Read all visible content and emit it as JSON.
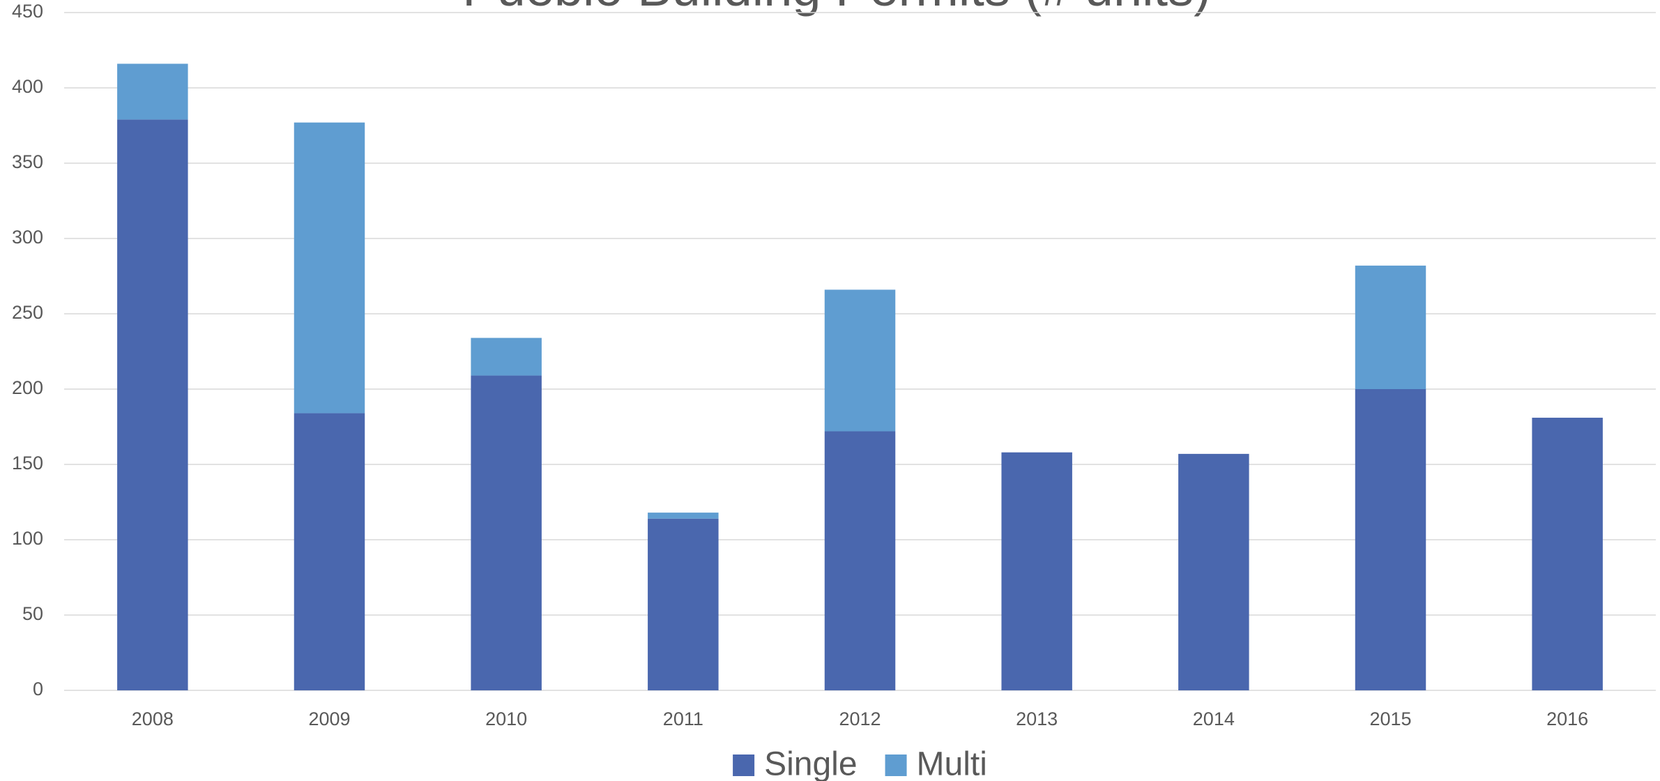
{
  "chart_data": {
    "type": "stacked-bar",
    "title": "Pueblo Building Permits (# units)",
    "categories": [
      "2008",
      "2009",
      "2010",
      "2011",
      "2012",
      "2013",
      "2014",
      "2015",
      "2016"
    ],
    "series": [
      {
        "name": "Single",
        "color": "#4a67ae",
        "values": [
          379,
          184,
          209,
          114,
          172,
          158,
          157,
          200,
          181
        ]
      },
      {
        "name": "Multi",
        "color": "#5f9dd1",
        "values": [
          37,
          193,
          25,
          4,
          94,
          0,
          0,
          82,
          0
        ]
      }
    ],
    "ylim": [
      0,
      450
    ],
    "yticks": [
      0,
      50,
      100,
      150,
      200,
      250,
      300,
      350,
      400,
      450
    ],
    "grid": true,
    "legend": "bottom"
  }
}
